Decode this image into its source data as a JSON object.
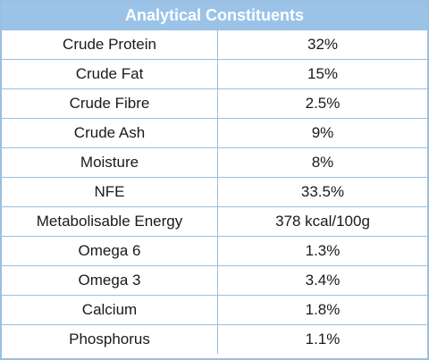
{
  "title": "Analytical Constituents",
  "rows": [
    {
      "name": "Crude Protein",
      "value": "32%"
    },
    {
      "name": "Crude Fat",
      "value": "15%"
    },
    {
      "name": "Crude Fibre",
      "value": "2.5%"
    },
    {
      "name": "Crude Ash",
      "value": "9%"
    },
    {
      "name": "Moisture",
      "value": "8%"
    },
    {
      "name": "NFE",
      "value": "33.5%"
    },
    {
      "name": "Metabolisable Energy",
      "value": "378 kcal/100g"
    },
    {
      "name": "Omega 6",
      "value": "1.3%"
    },
    {
      "name": "Omega 3",
      "value": "3.4%"
    },
    {
      "name": "Calcium",
      "value": "1.8%"
    },
    {
      "name": "Phosphorus",
      "value": "1.1%"
    }
  ],
  "colors": {
    "header_background": "#9bc3e8",
    "header_text": "#ffffff",
    "grid_lines": "#9bbfe0"
  }
}
